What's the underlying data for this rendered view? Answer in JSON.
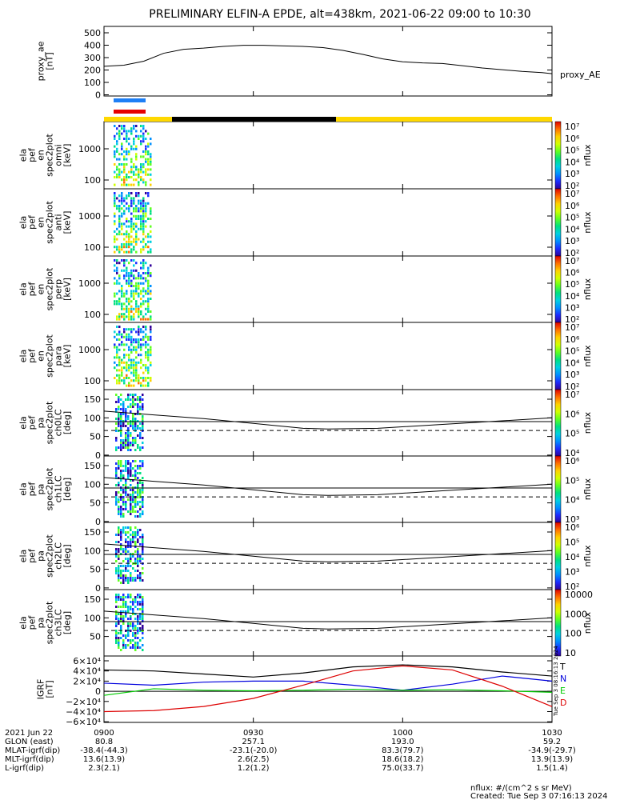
{
  "title": "PRELIMINARY ELFIN-A EPDE, alt=438km, 2021-06-22 09:00 to 10:30",
  "colors": {
    "black": "#000000",
    "yellow": "#ffd800",
    "blue": "#1e7ff5",
    "red": "#e60000",
    "grf_T": "#000000",
    "grf_N": "#0000dd",
    "grf_E": "#00cc00",
    "grf_D": "#dd0000"
  },
  "panels": [
    {
      "id": "ae",
      "ylabel": [
        "proxy_ae",
        "[nT]"
      ],
      "ticks": [
        "500",
        "400",
        "300",
        "200",
        "100",
        "0"
      ],
      "right_label": "proxy_AE"
    },
    {
      "id": "omni",
      "ylabel": [
        "ela",
        "pef",
        "en",
        "spec2plot",
        "omni",
        "[keV]"
      ],
      "ticks": [
        "1000",
        "100"
      ],
      "cbar_label": "nflux"
    },
    {
      "id": "anti",
      "ylabel": [
        "ela",
        "pef",
        "en",
        "spec2plot",
        "anti",
        "[keV]"
      ],
      "ticks": [
        "1000",
        "100"
      ],
      "cbar_label": "nflux"
    },
    {
      "id": "perp",
      "ylabel": [
        "ela",
        "pef",
        "en",
        "spec2plot",
        "perp",
        "[keV]"
      ],
      "ticks": [
        "1000",
        "100"
      ],
      "cbar_label": "nflux"
    },
    {
      "id": "para",
      "ylabel": [
        "ela",
        "pef",
        "en",
        "spec2plot",
        "para",
        "[keV]"
      ],
      "ticks": [
        "1000",
        "100"
      ],
      "cbar_label": "nflux"
    },
    {
      "id": "ch0",
      "ylabel": [
        "ela",
        "pef",
        "pa",
        "spec2plot",
        "ch0LC",
        "[deg]"
      ],
      "ticks": [
        "150",
        "100",
        "50",
        "0"
      ],
      "cbar_label": "nflux"
    },
    {
      "id": "ch1",
      "ylabel": [
        "ela",
        "pef",
        "pa",
        "spec2plot",
        "ch1LC",
        "[deg]"
      ],
      "ticks": [
        "150",
        "100",
        "50",
        "0"
      ],
      "cbar_label": "nflux"
    },
    {
      "id": "ch2",
      "ylabel": [
        "ela",
        "pef",
        "pa",
        "spec2plot",
        "ch2LC",
        "[deg]"
      ],
      "ticks": [
        "150",
        "100",
        "50",
        "0"
      ],
      "cbar_label": "nflux"
    },
    {
      "id": "ch3",
      "ylabel": [
        "ela",
        "pef",
        "pa",
        "spec2plot",
        "ch3LC",
        "[deg]"
      ],
      "ticks": [
        "150",
        "100",
        "50"
      ],
      "cbar_label": "nflux"
    },
    {
      "id": "grf",
      "ylabel": [
        "IGRF",
        "[nT]"
      ],
      "ticks": [
        "6×10⁴",
        "4×10⁴",
        "2×10⁴",
        "0",
        "−2×10⁴",
        "−4×10⁴",
        "−6×10⁴"
      ],
      "legend": [
        "T",
        "N",
        "E",
        "D"
      ]
    }
  ],
  "colorbars": [
    [
      "10⁷",
      "10⁶",
      "10⁵",
      "10⁴",
      "10³",
      "10²"
    ],
    [
      "10⁷",
      "10⁶",
      "10⁵",
      "10⁴",
      "10³",
      "10²"
    ],
    [
      "10⁷",
      "10⁶",
      "10⁵",
      "10⁴",
      "10³",
      "10²"
    ],
    [
      "10⁷",
      "10⁶",
      "10⁵",
      "10⁴",
      "10³",
      "10²"
    ],
    [
      "10⁷",
      "10⁶",
      "10⁵",
      "10⁴"
    ],
    [
      "10⁶",
      "10⁵",
      "10⁴",
      "10³"
    ],
    [
      "10⁶",
      "10⁵",
      "10⁴",
      "10³",
      "10²"
    ],
    [
      "10000",
      "1000",
      "100",
      "10"
    ]
  ],
  "time_axis": {
    "ticks": [
      "0900",
      "0930",
      "1000",
      "1030"
    ]
  },
  "ephemeris": {
    "row_labels": [
      "2021 Jun 22",
      "GLON (east)",
      "MLAT-igrf(dip)",
      "MLT-igrf(dip)",
      "L-igrf(dip)"
    ],
    "columns": [
      [
        "0900",
        "80.8",
        "-38.4(-44.3)",
        "13.6(13.9)",
        "2.3(2.1)"
      ],
      [
        "0930",
        "257.1",
        "-23.1(-20.0)",
        "2.6(2.5)",
        "1.2(1.2)"
      ],
      [
        "1000",
        "193.0",
        "83.3(79.7)",
        "18.6(18.2)",
        "75.0(33.7)"
      ],
      [
        "1030",
        "59.2",
        "-34.9(-29.7)",
        "13.9(13.9)",
        "1.5(1.4)"
      ]
    ]
  },
  "footer": {
    "units": "nflux: #/(cm^2 s sr MeV)",
    "created": "Created: Tue Sep  3 07:16:13 2024",
    "side_stamp": "Tue Sep  3 08:16:13 2024"
  },
  "chart_data": {
    "type": "line",
    "title": "PRELIMINARY ELFIN-A EPDE, alt=438km, 2021-06-22 09:00 to 10:30",
    "x_unit": "minutes after 09:00",
    "xlim": [
      0,
      90
    ],
    "proxy_ae": {
      "ylabel": "proxy_ae [nT]",
      "ylim": [
        0,
        500
      ],
      "x": [
        0,
        4,
        8,
        12,
        16,
        20,
        24,
        28,
        32,
        36,
        40,
        44,
        48,
        52,
        56,
        60,
        64,
        68,
        72,
        76,
        80,
        84,
        88,
        90
      ],
      "values": [
        205,
        215,
        250,
        320,
        355,
        365,
        380,
        390,
        390,
        385,
        380,
        370,
        345,
        310,
        270,
        245,
        235,
        230,
        210,
        190,
        175,
        160,
        150,
        140
      ]
    },
    "pitch_angle_lines": {
      "ylim": [
        0,
        180
      ],
      "x": [
        0,
        10,
        20,
        30,
        40,
        45,
        55,
        65,
        75,
        90
      ],
      "solid": [
        118,
        108,
        98,
        85,
        72,
        70,
        72,
        80,
        88,
        100
      ],
      "dashed_losscone": [
        66,
        66,
        66,
        66,
        66,
        66,
        66,
        66,
        66,
        66
      ]
    },
    "igrf": {
      "ylabel": "IGRF [nT]",
      "ylim": [
        -60000,
        60000
      ],
      "x": [
        0,
        10,
        20,
        30,
        40,
        50,
        60,
        70,
        80,
        90
      ],
      "series": [
        {
          "name": "T",
          "values": [
            42000,
            40000,
            34000,
            28000,
            36000,
            48000,
            52000,
            48000,
            38000,
            30000
          ]
        },
        {
          "name": "N",
          "values": [
            16000,
            12000,
            18000,
            20000,
            20000,
            12000,
            2000,
            14000,
            30000,
            20000
          ]
        },
        {
          "name": "E",
          "values": [
            -8000,
            5000,
            2000,
            1000,
            2000,
            4000,
            2000,
            3000,
            1000,
            -2000
          ]
        },
        {
          "name": "D",
          "values": [
            -40000,
            -38000,
            -30000,
            -14000,
            12000,
            40000,
            50000,
            42000,
            10000,
            -30000
          ]
        }
      ]
    }
  }
}
